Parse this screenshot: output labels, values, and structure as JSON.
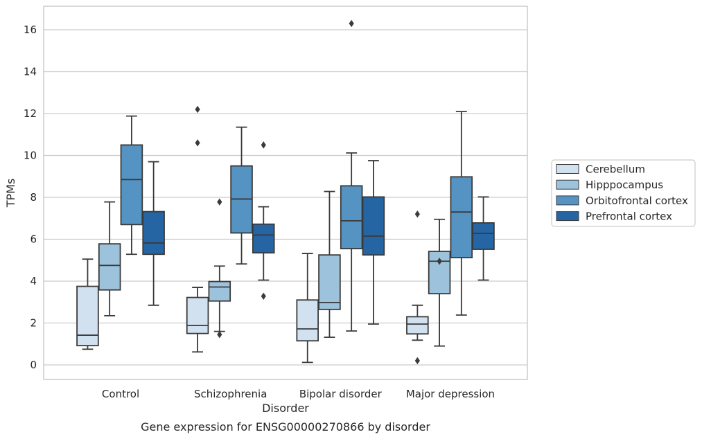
{
  "chart_data": {
    "type": "box",
    "caption": "Gene expression for ENSG00000270866 by disorder",
    "xlabel": "Disorder",
    "ylabel": "TPMs",
    "ylim": [
      -0.7,
      17.2
    ],
    "yticks": [
      0,
      2,
      4,
      6,
      8,
      10,
      12,
      14,
      16
    ],
    "grid": "horizontal",
    "legend_placement": "right",
    "categories": [
      "Control",
      "Schizophrenia",
      "Bipolar disorder",
      "Major depression"
    ],
    "series": [
      {
        "name": "Cerebellum",
        "color": "#d1e1f0",
        "boxes": [
          {
            "whislo": 0.75,
            "q1": 0.92,
            "med": 1.42,
            "q3": 3.75,
            "whishi": 5.05,
            "fliers": []
          },
          {
            "whislo": 0.62,
            "q1": 1.5,
            "med": 1.88,
            "q3": 3.22,
            "whishi": 3.7,
            "fliers": [
              10.6,
              12.2
            ]
          },
          {
            "whislo": 0.12,
            "q1": 1.15,
            "med": 1.72,
            "q3": 3.1,
            "whishi": 5.32,
            "fliers": []
          },
          {
            "whislo": 1.18,
            "q1": 1.48,
            "med": 1.95,
            "q3": 2.3,
            "whishi": 2.85,
            "fliers": [
              0.2,
              7.2
            ]
          }
        ]
      },
      {
        "name": "Hipppocampus",
        "color": "#9dc3dc",
        "boxes": [
          {
            "whislo": 2.35,
            "q1": 3.58,
            "med": 4.75,
            "q3": 5.78,
            "whishi": 7.78,
            "fliers": []
          },
          {
            "whislo": 1.6,
            "q1": 3.05,
            "med": 3.72,
            "q3": 3.98,
            "whishi": 4.72,
            "fliers": [
              1.45,
              7.78
            ]
          },
          {
            "whislo": 1.32,
            "q1": 2.65,
            "med": 2.98,
            "q3": 5.25,
            "whishi": 8.28,
            "fliers": []
          },
          {
            "whislo": 0.9,
            "q1": 3.4,
            "med": 4.95,
            "q3": 5.42,
            "whishi": 6.95,
            "fliers": [
              4.95
            ]
          }
        ]
      },
      {
        "name": "Orbitofrontal cortex",
        "color": "#5593c2",
        "boxes": [
          {
            "whislo": 5.28,
            "q1": 6.7,
            "med": 8.85,
            "q3": 10.5,
            "whishi": 11.88,
            "fliers": []
          },
          {
            "whislo": 4.82,
            "q1": 6.3,
            "med": 7.92,
            "q3": 9.5,
            "whishi": 11.35,
            "fliers": []
          },
          {
            "whislo": 1.62,
            "q1": 5.55,
            "med": 6.88,
            "q3": 8.55,
            "whishi": 10.12,
            "fliers": [
              16.3
            ]
          },
          {
            "whislo": 2.38,
            "q1": 5.12,
            "med": 7.3,
            "q3": 8.98,
            "whishi": 12.1,
            "fliers": []
          }
        ]
      },
      {
        "name": "Prefrontal cortex",
        "color": "#2565a3",
        "boxes": [
          {
            "whislo": 2.85,
            "q1": 5.28,
            "med": 5.82,
            "q3": 7.32,
            "whishi": 9.7,
            "fliers": []
          },
          {
            "whislo": 4.05,
            "q1": 5.35,
            "med": 6.2,
            "q3": 6.72,
            "whishi": 7.55,
            "fliers": [
              3.28,
              10.5
            ]
          },
          {
            "whislo": 1.95,
            "q1": 5.25,
            "med": 6.15,
            "q3": 8.02,
            "whishi": 9.75,
            "fliers": []
          },
          {
            "whislo": 4.05,
            "q1": 5.52,
            "med": 6.28,
            "q3": 6.78,
            "whishi": 8.02,
            "fliers": []
          }
        ]
      }
    ]
  }
}
